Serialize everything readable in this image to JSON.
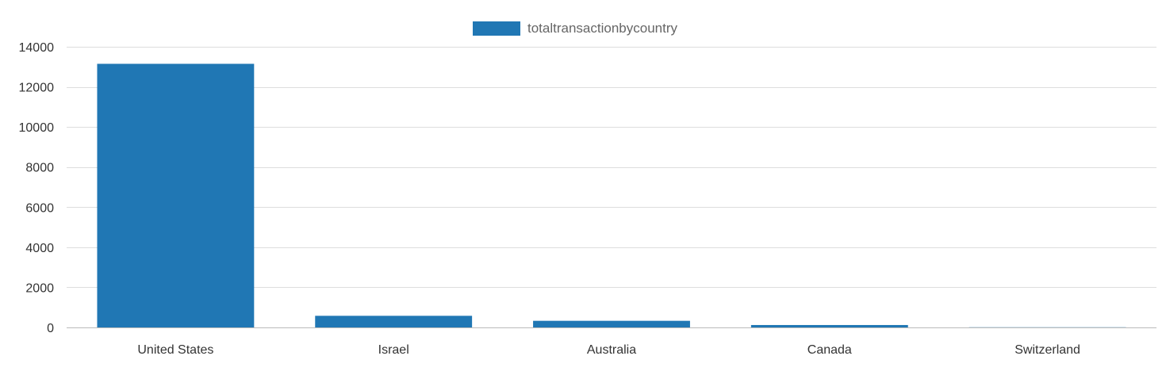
{
  "chart_data": {
    "type": "bar",
    "categories": [
      "United States",
      "Israel",
      "Australia",
      "Canada",
      "Switzerland"
    ],
    "series": [
      {
        "name": "totaltransactionbycountry",
        "values": [
          13150,
          580,
          330,
          120,
          25
        ],
        "color": "#2077b4"
      }
    ],
    "ylim": [
      0,
      14000
    ],
    "yticks": [
      0,
      2000,
      4000,
      6000,
      8000,
      10000,
      12000,
      14000
    ],
    "title": "",
    "xlabel": "",
    "ylabel": "",
    "grid": true,
    "legend_position": "top-center"
  }
}
